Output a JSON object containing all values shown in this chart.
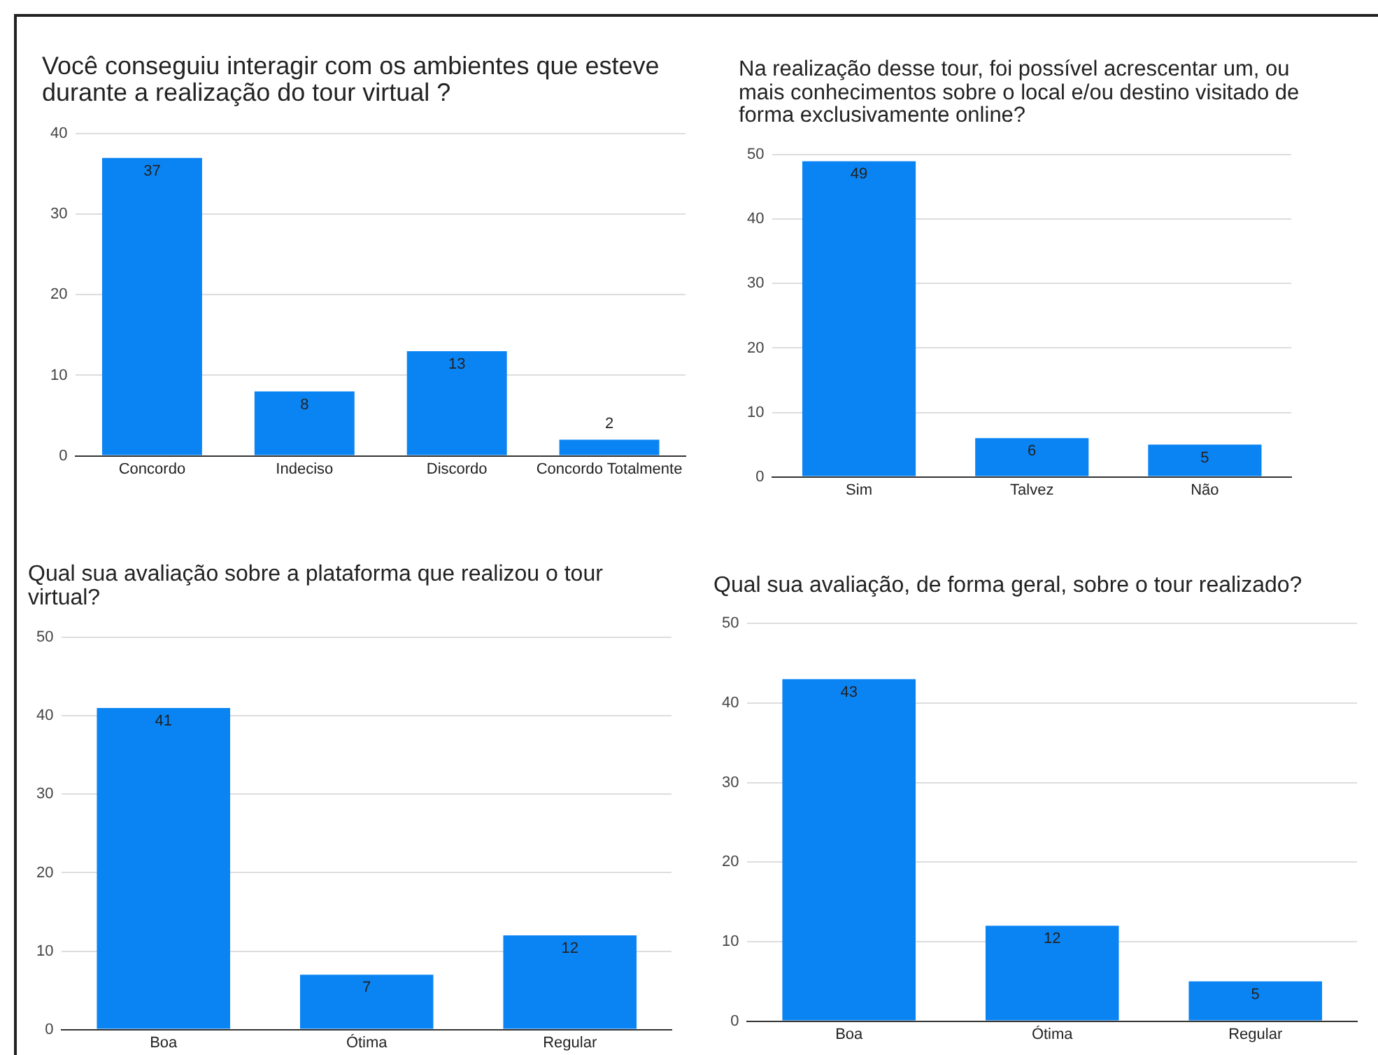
{
  "chart_data": [
    {
      "type": "bar",
      "title": "Você conseguiu interagir com os ambientes que esteve durante a realização do tour virtual ?",
      "categories": [
        "Concordo",
        "Indeciso",
        "Discordo",
        "Concordo Totalmente"
      ],
      "values": [
        37,
        8,
        13,
        2
      ],
      "color": "#0b84f3",
      "ylim": [
        0,
        40
      ],
      "yticks": [
        0,
        10,
        20,
        30,
        40
      ],
      "grid": "y",
      "data_labels": true
    },
    {
      "type": "bar",
      "title": "Na realização desse tour, foi possível acrescentar um, ou mais conhecimentos sobre o local e/ou destino visitado de forma exclusivamente online?",
      "categories": [
        "Sim",
        "Talvez",
        "Não"
      ],
      "values": [
        49,
        6,
        5
      ],
      "color": "#0b84f3",
      "ylim": [
        0,
        50
      ],
      "yticks": [
        0,
        10,
        20,
        30,
        40,
        50
      ],
      "grid": "y",
      "data_labels": true
    },
    {
      "type": "bar",
      "title": "Qual sua avaliação sobre a plataforma que realizou o tour virtual?",
      "categories": [
        "Boa",
        "Ótima",
        "Regular"
      ],
      "values": [
        41,
        7,
        12
      ],
      "color": "#0b84f3",
      "ylim": [
        0,
        50
      ],
      "yticks": [
        0,
        10,
        20,
        30,
        40,
        50
      ],
      "grid": "y",
      "data_labels": true
    },
    {
      "type": "bar",
      "title": "Qual sua avaliação, de forma geral, sobre o tour realizado?",
      "categories": [
        "Boa",
        "Ótima",
        "Regular"
      ],
      "values": [
        43,
        12,
        5
      ],
      "color": "#0b84f3",
      "ylim": [
        0,
        50
      ],
      "yticks": [
        0,
        10,
        20,
        30,
        40,
        50
      ],
      "grid": "y",
      "data_labels": true
    }
  ]
}
